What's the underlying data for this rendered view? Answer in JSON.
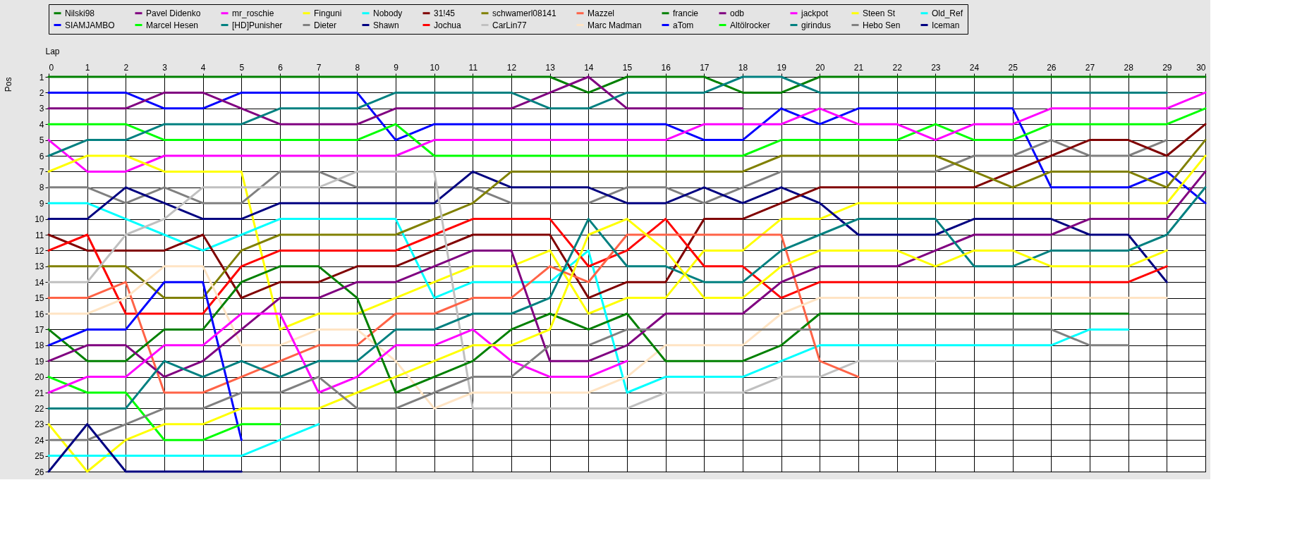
{
  "chart_data": {
    "type": "line",
    "xlabel": "Lap",
    "ylabel": "Pos",
    "legend": "top",
    "grid": true,
    "line_style": "solid",
    "x": [
      0,
      1,
      2,
      3,
      4,
      5,
      6,
      7,
      8,
      9,
      10,
      11,
      12,
      13,
      14,
      15,
      16,
      17,
      18,
      19,
      20,
      21,
      22,
      23,
      24,
      25,
      26,
      27,
      28,
      29,
      30
    ],
    "xlim": [
      0,
      30
    ],
    "xticks": [
      0,
      1,
      2,
      3,
      4,
      5,
      6,
      7,
      8,
      9,
      10,
      11,
      12,
      13,
      14,
      15,
      16,
      17,
      18,
      19,
      20,
      21,
      22,
      23,
      24,
      25,
      26,
      27,
      28,
      29,
      30
    ],
    "ylim": [
      26,
      1
    ],
    "yticks": [
      1,
      2,
      3,
      4,
      5,
      6,
      7,
      8,
      9,
      10,
      11,
      12,
      13,
      14,
      15,
      16,
      17,
      18,
      19,
      20,
      21,
      22,
      23,
      24,
      25,
      26
    ],
    "series": [
      {
        "name": "Nilski98",
        "color": "#008000",
        "values": [
          1,
          1,
          1,
          1,
          1,
          1,
          1,
          1,
          1,
          1,
          1,
          1,
          1,
          1,
          2,
          1,
          1,
          1,
          2,
          2,
          1,
          1,
          1,
          1,
          1,
          1,
          1,
          1,
          1,
          1,
          1
        ]
      },
      {
        "name": "SIAMJAMBO",
        "color": "#0000ff",
        "values": [
          2,
          2,
          2,
          3,
          3,
          2,
          2,
          2,
          2,
          5,
          4,
          4,
          4,
          4,
          4,
          4,
          4,
          5,
          5,
          3,
          4,
          3,
          3,
          3,
          3,
          3,
          8,
          8,
          8,
          7,
          9
        ]
      },
      {
        "name": "Pavel Didenko",
        "color": "#800080",
        "values": [
          3,
          3,
          3,
          2,
          2,
          3,
          4,
          4,
          4,
          3,
          3,
          3,
          3,
          2,
          1,
          3,
          3,
          3,
          3,
          null,
          null,
          null,
          null,
          null,
          null,
          null,
          null,
          null,
          null,
          null,
          null
        ]
      },
      {
        "name": "Marcel Hesen",
        "color": "#00ff00",
        "values": [
          4,
          4,
          4,
          5,
          5,
          5,
          5,
          5,
          5,
          4,
          6,
          6,
          6,
          6,
          6,
          6,
          6,
          6,
          6,
          5,
          5,
          5,
          5,
          4,
          5,
          5,
          4,
          4,
          4,
          4,
          3
        ]
      },
      {
        "name": "mr_roschie",
        "color": "#ff00ff",
        "values": [
          5,
          7,
          7,
          6,
          6,
          6,
          6,
          6,
          6,
          6,
          5,
          5,
          5,
          5,
          5,
          5,
          5,
          4,
          4,
          4,
          3,
          4,
          4,
          5,
          4,
          4,
          3,
          3,
          3,
          3,
          2
        ]
      },
      {
        "name": "[HD]Punisher",
        "color": "#008080",
        "values": [
          6,
          5,
          5,
          4,
          4,
          4,
          3,
          3,
          3,
          2,
          2,
          2,
          2,
          3,
          3,
          2,
          2,
          2,
          1,
          1,
          2,
          2,
          2,
          2,
          2,
          2,
          2,
          2,
          2,
          2,
          null
        ]
      },
      {
        "name": "Finguni",
        "color": "#ffff00",
        "values": [
          7,
          6,
          6,
          7,
          7,
          7,
          17,
          16,
          16,
          15,
          14,
          13,
          13,
          12,
          16,
          15,
          15,
          12,
          12,
          10,
          10,
          9,
          9,
          9,
          9,
          9,
          9,
          9,
          9,
          9,
          6
        ]
      },
      {
        "name": "Dieter",
        "color": "#808080",
        "values": [
          8,
          8,
          9,
          8,
          9,
          9,
          7,
          7,
          8,
          8,
          8,
          8,
          9,
          9,
          9,
          8,
          8,
          9,
          8,
          7,
          7,
          7,
          7,
          7,
          6,
          6,
          5,
          6,
          6,
          5,
          null
        ]
      },
      {
        "name": "Nobody",
        "color": "#00ffff",
        "values": [
          9,
          9,
          10,
          11,
          12,
          11,
          10,
          10,
          10,
          10,
          15,
          14,
          14,
          14,
          12,
          21,
          20,
          20,
          20,
          19,
          18,
          18,
          18,
          18,
          18,
          18,
          18,
          17,
          17,
          null,
          null
        ]
      },
      {
        "name": "Shawn",
        "color": "#000080",
        "values": [
          10,
          10,
          8,
          9,
          10,
          10,
          9,
          9,
          9,
          9,
          9,
          7,
          8,
          8,
          8,
          9,
          9,
          8,
          9,
          8,
          9,
          11,
          11,
          11,
          10,
          10,
          10,
          11,
          11,
          14,
          null
        ]
      },
      {
        "name": "31!45",
        "color": "#800000",
        "values": [
          11,
          12,
          12,
          12,
          11,
          15,
          14,
          14,
          13,
          13,
          12,
          11,
          11,
          11,
          15,
          14,
          14,
          10,
          10,
          9,
          8,
          8,
          8,
          8,
          8,
          7,
          6,
          5,
          5,
          6,
          4
        ]
      },
      {
        "name": "Jochua",
        "color": "#ff0000",
        "values": [
          12,
          11,
          16,
          16,
          16,
          13,
          12,
          12,
          12,
          12,
          11,
          10,
          10,
          10,
          13,
          12,
          10,
          13,
          13,
          15,
          14,
          14,
          14,
          14,
          14,
          14,
          14,
          14,
          14,
          13,
          null
        ]
      },
      {
        "name": "schwamerl08141",
        "color": "#808000",
        "values": [
          13,
          13,
          13,
          15,
          15,
          12,
          11,
          11,
          11,
          11,
          10,
          9,
          7,
          7,
          7,
          7,
          7,
          7,
          7,
          6,
          6,
          6,
          6,
          6,
          7,
          8,
          7,
          7,
          7,
          8,
          5
        ]
      },
      {
        "name": "CarLin77",
        "color": "#c0c0c0",
        "values": [
          14,
          14,
          11,
          10,
          8,
          8,
          8,
          8,
          7,
          7,
          7,
          22,
          22,
          22,
          22,
          22,
          21,
          21,
          21,
          20,
          20,
          19,
          19,
          19,
          null,
          null,
          null,
          null,
          null,
          null,
          null
        ]
      },
      {
        "name": "Mazzel",
        "color": "#ff6347",
        "values": [
          15,
          15,
          14,
          21,
          21,
          20,
          19,
          18,
          18,
          16,
          16,
          15,
          15,
          13,
          14,
          11,
          11,
          11,
          11,
          11,
          19,
          20,
          null,
          null,
          null,
          null,
          null,
          null,
          null,
          null,
          null
        ]
      },
      {
        "name": "Marc Madman",
        "color": "#ffe4c4",
        "values": [
          16,
          16,
          15,
          13,
          13,
          18,
          18,
          17,
          17,
          19,
          22,
          21,
          21,
          21,
          21,
          20,
          18,
          18,
          18,
          16,
          15,
          15,
          15,
          15,
          15,
          15,
          15,
          15,
          15,
          15,
          null
        ]
      },
      {
        "name": "francie",
        "color": "#008000",
        "values": [
          17,
          19,
          19,
          17,
          17,
          14,
          13,
          13,
          15,
          21,
          20,
          19,
          17,
          16,
          17,
          16,
          19,
          19,
          19,
          18,
          16,
          16,
          16,
          16,
          16,
          16,
          16,
          16,
          16,
          null,
          null
        ]
      },
      {
        "name": "aTom",
        "color": "#0000ff",
        "values": [
          18,
          17,
          17,
          14,
          14,
          24,
          null,
          null,
          null,
          null,
          null,
          null,
          null,
          null,
          null,
          null,
          null,
          null,
          null,
          null,
          null,
          null,
          null,
          null,
          null,
          null,
          null,
          null,
          null,
          null,
          null
        ]
      },
      {
        "name": "odb",
        "color": "#800080",
        "values": [
          19,
          18,
          18,
          20,
          19,
          17,
          15,
          15,
          14,
          14,
          13,
          12,
          12,
          19,
          19,
          18,
          16,
          16,
          16,
          14,
          13,
          13,
          13,
          12,
          11,
          11,
          11,
          10,
          10,
          10,
          7
        ]
      },
      {
        "name": "Altölrocker",
        "color": "#00ff00",
        "values": [
          20,
          21,
          21,
          24,
          24,
          23,
          23,
          null,
          null,
          null,
          null,
          null,
          null,
          null,
          null,
          null,
          null,
          null,
          null,
          null,
          null,
          null,
          null,
          null,
          null,
          null,
          null,
          null,
          null,
          null,
          null
        ]
      },
      {
        "name": "jackpot",
        "color": "#ff00ff",
        "values": [
          21,
          20,
          20,
          18,
          18,
          16,
          16,
          21,
          20,
          18,
          18,
          17,
          19,
          20,
          20,
          19,
          null,
          null,
          null,
          null,
          null,
          null,
          null,
          null,
          null,
          null,
          null,
          null,
          null,
          null,
          null
        ]
      },
      {
        "name": "girindus",
        "color": "#008080",
        "values": [
          22,
          22,
          22,
          19,
          20,
          19,
          20,
          19,
          19,
          17,
          17,
          16,
          16,
          15,
          10,
          13,
          13,
          14,
          14,
          12,
          11,
          10,
          10,
          10,
          13,
          13,
          12,
          12,
          12,
          11,
          8
        ]
      },
      {
        "name": "Steen St",
        "color": "#ffff00",
        "values": [
          23,
          26,
          24,
          23,
          23,
          22,
          22,
          22,
          21,
          20,
          19,
          18,
          18,
          17,
          11,
          10,
          12,
          15,
          15,
          13,
          12,
          12,
          12,
          13,
          12,
          12,
          13,
          13,
          13,
          12,
          null
        ]
      },
      {
        "name": "Hebo Sen",
        "color": "#808080",
        "values": [
          24,
          24,
          23,
          22,
          22,
          21,
          21,
          20,
          22,
          22,
          21,
          20,
          20,
          18,
          18,
          17,
          17,
          17,
          17,
          17,
          17,
          17,
          17,
          17,
          17,
          17,
          17,
          18,
          18,
          null,
          null
        ]
      },
      {
        "name": "Old_Ref",
        "color": "#00ffff",
        "values": [
          25,
          25,
          25,
          25,
          25,
          25,
          24,
          23,
          null,
          null,
          null,
          null,
          null,
          null,
          null,
          null,
          null,
          null,
          null,
          null,
          null,
          null,
          null,
          null,
          null,
          null,
          null,
          null,
          null,
          null,
          null
        ]
      },
      {
        "name": "Iceman",
        "color": "#000080",
        "values": [
          26,
          23,
          26,
          26,
          26,
          26,
          null,
          null,
          null,
          null,
          null,
          null,
          null,
          null,
          null,
          null,
          null,
          null,
          null,
          null,
          null,
          null,
          null,
          null,
          null,
          null,
          null,
          null,
          null,
          null,
          null
        ]
      }
    ]
  }
}
